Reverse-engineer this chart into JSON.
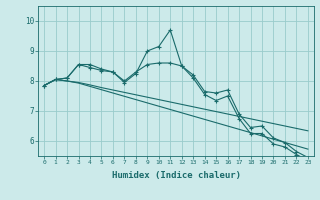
{
  "xlabel": "Humidex (Indice chaleur)",
  "bg_color": "#cceaea",
  "grid_color": "#99cccc",
  "line_color": "#1a6b6b",
  "xlim": [
    -0.5,
    23.5
  ],
  "ylim": [
    5.5,
    10.5
  ],
  "xticks": [
    0,
    1,
    2,
    3,
    4,
    5,
    6,
    7,
    8,
    9,
    10,
    11,
    12,
    13,
    14,
    15,
    16,
    17,
    18,
    19,
    20,
    21,
    22,
    23
  ],
  "yticks": [
    6,
    7,
    8,
    9,
    10
  ],
  "series": [
    [
      7.85,
      8.05,
      8.1,
      8.55,
      8.55,
      8.4,
      8.3,
      7.95,
      8.25,
      9.0,
      9.15,
      9.7,
      8.5,
      8.2,
      7.65,
      7.6,
      7.7,
      6.9,
      6.45,
      6.5,
      6.1,
      5.95,
      5.65,
      5.45
    ],
    [
      7.85,
      8.05,
      8.1,
      8.55,
      8.45,
      8.35,
      8.3,
      8.0,
      8.3,
      8.55,
      8.6,
      8.6,
      8.5,
      8.1,
      7.55,
      7.35,
      7.5,
      6.75,
      6.25,
      6.25,
      5.9,
      5.8,
      5.55,
      5.35
    ],
    [
      7.85,
      8.05,
      8.0,
      7.93,
      7.82,
      7.71,
      7.6,
      7.49,
      7.38,
      7.27,
      7.16,
      7.05,
      6.94,
      6.83,
      6.72,
      6.61,
      6.5,
      6.39,
      6.28,
      6.17,
      6.06,
      5.95,
      5.84,
      5.73
    ],
    [
      7.85,
      8.05,
      8.0,
      7.95,
      7.87,
      7.78,
      7.7,
      7.62,
      7.54,
      7.46,
      7.38,
      7.3,
      7.22,
      7.14,
      7.06,
      6.98,
      6.9,
      6.82,
      6.74,
      6.66,
      6.58,
      6.5,
      6.42,
      6.34
    ]
  ],
  "marker_series": [
    0,
    1
  ],
  "marker": "+",
  "markersize": 3,
  "linewidth": 0.8
}
